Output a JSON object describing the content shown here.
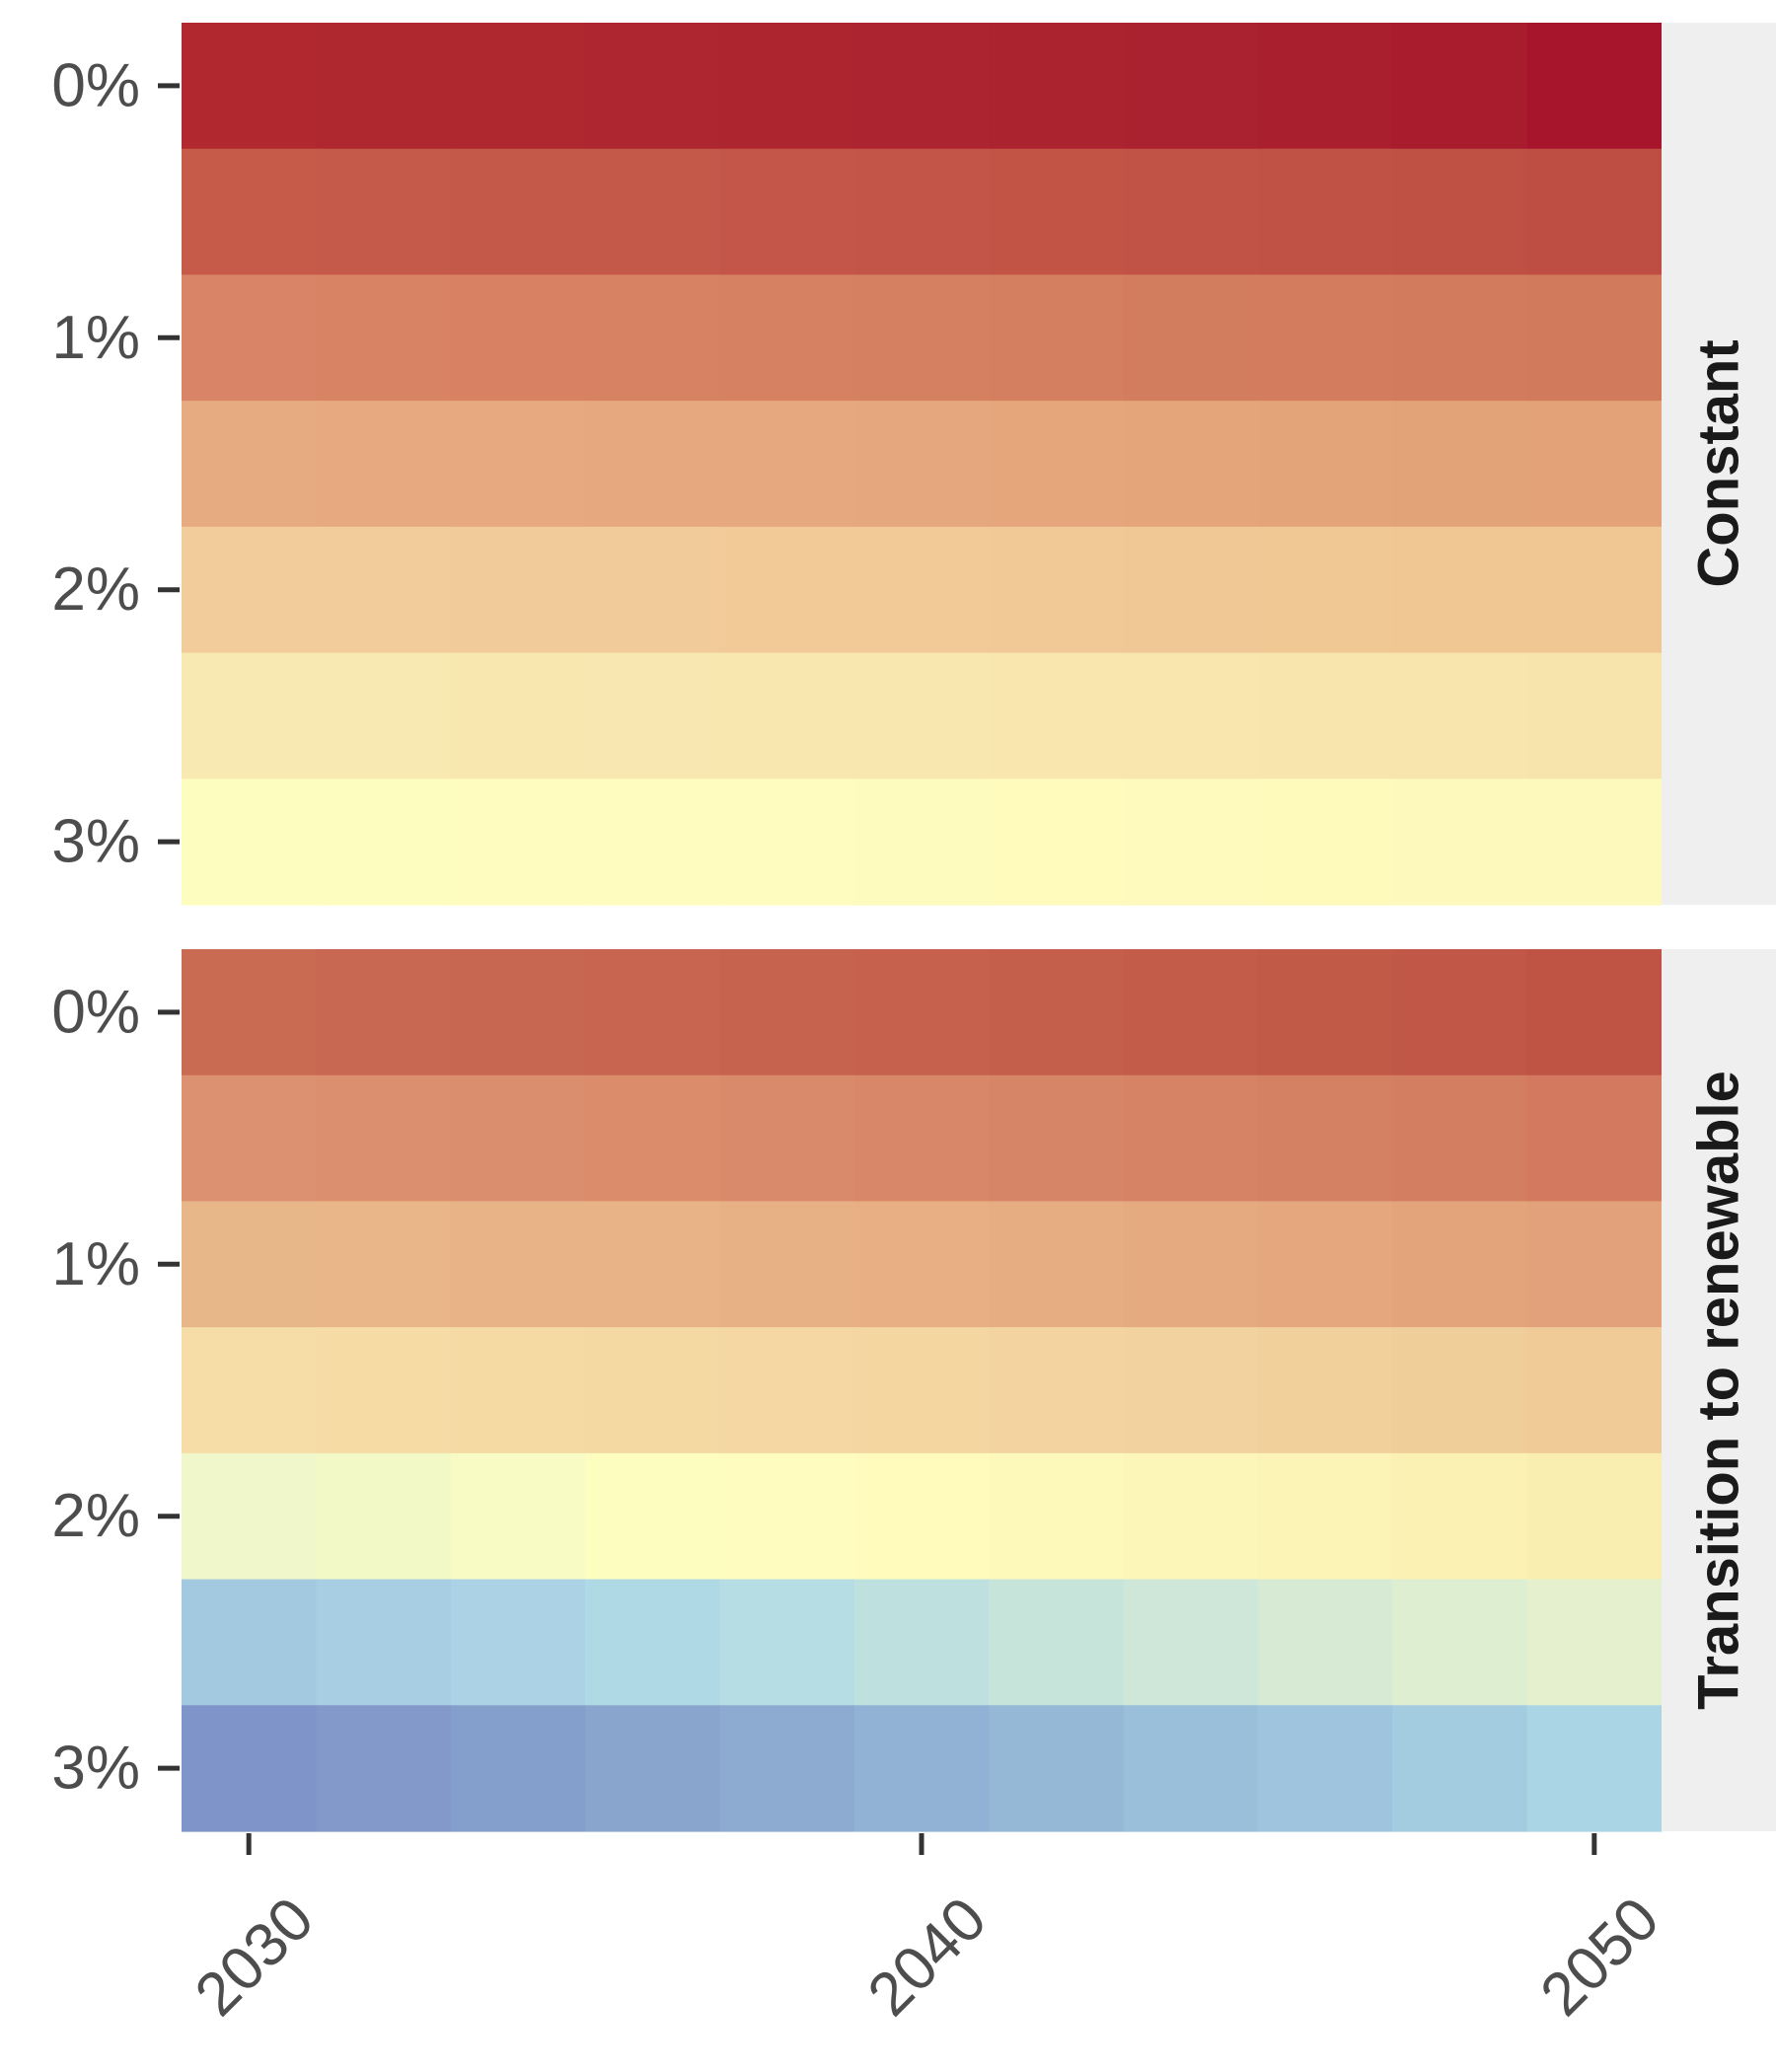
{
  "chart_data": {
    "type": "heatmap",
    "title": "",
    "xlabel": "",
    "ylabel": "",
    "x": [
      2030,
      2032,
      2034,
      2036,
      2038,
      2040,
      2042,
      2044,
      2046,
      2048,
      2050
    ],
    "x_ticks": [
      "2030",
      "2040",
      "2050"
    ],
    "x_tick_values": [
      2030,
      2040,
      2050
    ],
    "y_tick_labels": [
      "0%",
      "1%",
      "2%",
      "3%"
    ],
    "y_tick_rows": [
      0,
      2,
      4,
      6
    ],
    "color_scale": "red-yellow-blue diverging",
    "panels": [
      {
        "name": "Constant",
        "rows": [
          [
            "#b1292f",
            "#b0282f",
            "#af272f",
            "#ae262f",
            "#ad252f",
            "#ac242f",
            "#ab232f",
            "#aa212f",
            "#a91f2e",
            "#a81c2d",
            "#a6152b"
          ],
          [
            "#c65b4a",
            "#c55a4a",
            "#c4594a",
            "#c45849",
            "#c35648",
            "#c25547",
            "#c25446",
            "#c15346",
            "#c05145",
            "#bf5044",
            "#be4e43"
          ],
          [
            "#d98466",
            "#d88364",
            "#d88263",
            "#d78262",
            "#d68162",
            "#d58061",
            "#d47f60",
            "#d37d5f",
            "#d37c5e",
            "#d27b5d",
            "#d17a5c"
          ],
          [
            "#e7ab81",
            "#e7aa80",
            "#e7a97f",
            "#e6a97f",
            "#e6a87e",
            "#e5a77d",
            "#e5a67c",
            "#e4a57b",
            "#e4a47a",
            "#e3a379",
            "#e3a278"
          ],
          [
            "#f2cc9b",
            "#f2cc9a",
            "#f1cb99",
            "#f1cb99",
            "#f1ca98",
            "#f1ca97",
            "#f1c996",
            "#f0c895",
            "#f0c894",
            "#f0c793",
            "#f0c692"
          ],
          [
            "#f8e8b1",
            "#f8e8b1",
            "#f8e8b0",
            "#f8e7b0",
            "#f8e7af",
            "#f8e7af",
            "#f8e6ae",
            "#f8e6ae",
            "#f8e5ad",
            "#f7e5ad",
            "#f7e4ac"
          ],
          [
            "#fefdc0",
            "#fefdc0",
            "#fefcbf",
            "#fefcbf",
            "#fefcbe",
            "#fefbbe",
            "#fefbbd",
            "#fefabd",
            "#fdfabc",
            "#fdf9bc",
            "#fdf8bb"
          ]
        ]
      },
      {
        "name": "Transition to renewable",
        "rows": [
          [
            "#c96a53",
            "#c86852",
            "#c86751",
            "#c76550",
            "#c6634f",
            "#c5614d",
            "#c45f4c",
            "#c35d4a",
            "#c25a48",
            "#c15746",
            "#bf5344"
          ],
          [
            "#dc9170",
            "#db8f6e",
            "#db8e6d",
            "#da8c6b",
            "#d98a6a",
            "#d88868",
            "#d78567",
            "#d68265",
            "#d48063",
            "#d37d61",
            "#d2795f"
          ],
          [
            "#e8b789",
            "#e8b688",
            "#e8b487",
            "#e8b386",
            "#e7b185",
            "#e7af83",
            "#e6ad82",
            "#e5aa80",
            "#e4a77e",
            "#e3a47c",
            "#e2a17a"
          ],
          [
            "#f6dca6",
            "#f6dba5",
            "#f5daa4",
            "#f5d9a3",
            "#f4d7a2",
            "#f4d6a1",
            "#f3d4a0",
            "#f2d29e",
            "#f1d09c",
            "#f0ce9a",
            "#f0cb98"
          ],
          [
            "#eff7cb",
            "#f3f9c6",
            "#f8fbc3",
            "#fefdc0",
            "#fefcbf",
            "#fefbbd",
            "#fdf9bb",
            "#fcf7b9",
            "#fbf4b6",
            "#faf1b3",
            "#f9eeb0"
          ],
          [
            "#a3c9e0",
            "#a7cee2",
            "#abd3e5",
            "#b0d9e6",
            "#b6dde3",
            "#bee1df",
            "#c7e4db",
            "#cfe7d8",
            "#d7ebd4",
            "#deeed1",
            "#e5f1ce"
          ],
          [
            "#7f94c8",
            "#8299ca",
            "#859fcc",
            "#89a5ce",
            "#8dabd1",
            "#91b2d4",
            "#95b8d7",
            "#99bfda",
            "#9ec5dd",
            "#a4cce0",
            "#aad5e5"
          ]
        ]
      }
    ]
  }
}
